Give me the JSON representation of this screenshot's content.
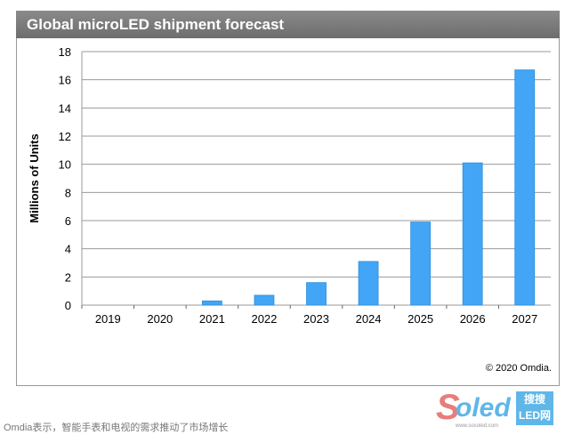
{
  "chart_data": {
    "type": "bar",
    "title": "Global microLED shipment forecast",
    "xlabel": "",
    "ylabel": "Millions of Units",
    "ylim": [
      0,
      18
    ],
    "yticks": [
      0,
      2,
      4,
      6,
      8,
      10,
      12,
      14,
      16,
      18
    ],
    "grid": true,
    "categories": [
      "2019",
      "2020",
      "2021",
      "2022",
      "2023",
      "2024",
      "2025",
      "2026",
      "2027"
    ],
    "values": [
      0,
      0,
      0.3,
      0.7,
      1.6,
      3.1,
      5.9,
      10.1,
      16.7
    ],
    "bar_color": "#42a5f5"
  },
  "footer": {
    "copyright": "© 2020 Omdia."
  },
  "caption": "Omdia表示，智能手表和电视的需求推动了市场增长",
  "watermark": {
    "brand": "Soled",
    "box": "搜搜 LED网",
    "url": "www.sosoled.com"
  }
}
